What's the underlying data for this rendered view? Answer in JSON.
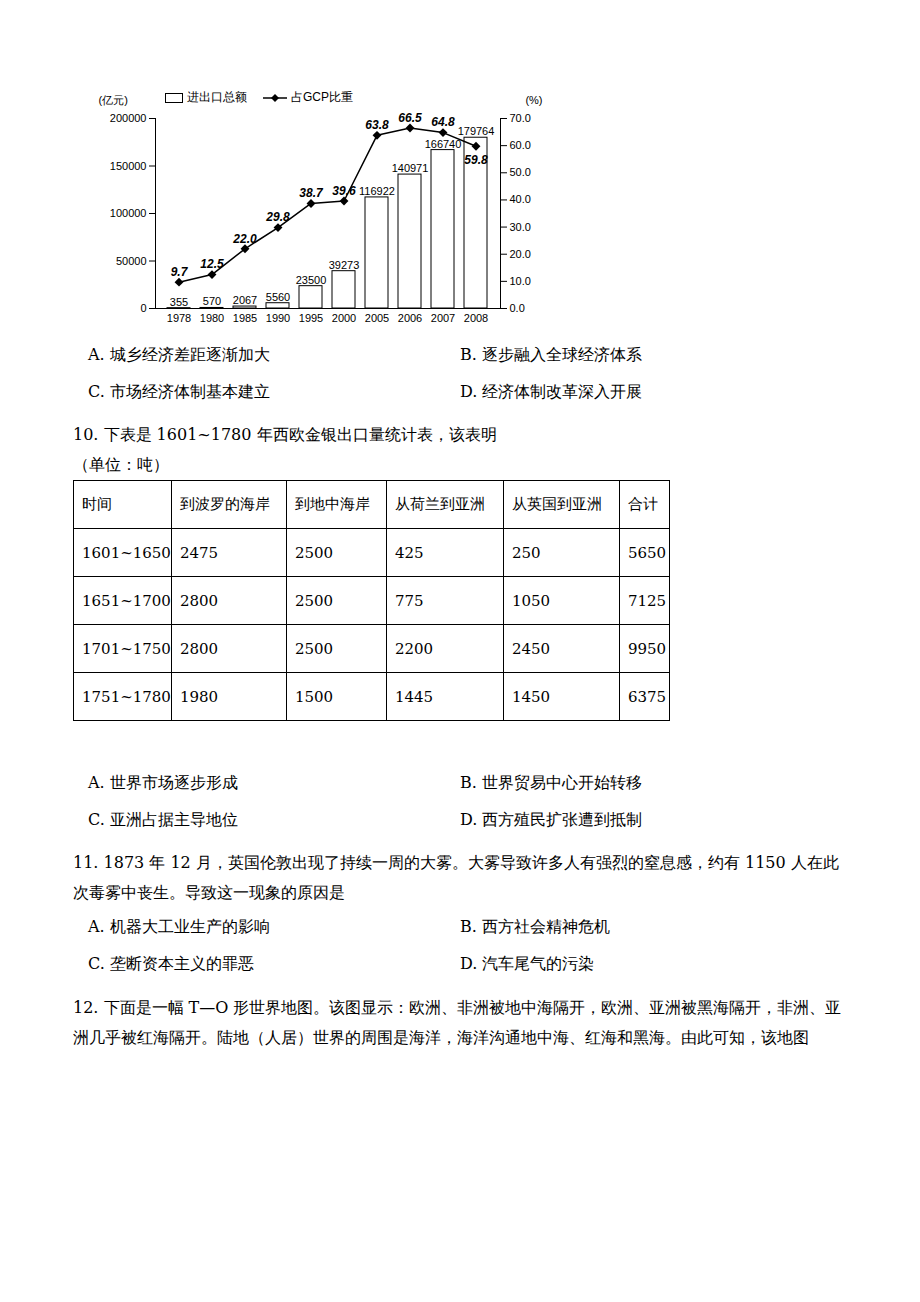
{
  "chart_data": {
    "type": "bar",
    "categories": [
      "1978",
      "1980",
      "1985",
      "1990",
      "1995",
      "2000",
      "2005",
      "2006",
      "2007",
      "2008"
    ],
    "ylabel": "(亿元)",
    "y2label": "(%)",
    "ylim": [
      0,
      200000
    ],
    "yticks": [
      0,
      50000,
      100000,
      150000,
      200000
    ],
    "y2lim": [
      0,
      70
    ],
    "y2ticks": [
      {
        "value": 0,
        "label": "0.0"
      },
      {
        "value": 10,
        "label": "10.0"
      },
      {
        "value": 20,
        "label": "20.0"
      },
      {
        "value": 30,
        "label": "30.0"
      },
      {
        "value": 40,
        "label": "40.0"
      },
      {
        "value": 50,
        "label": "50.0"
      },
      {
        "value": 60,
        "label": "60.0"
      },
      {
        "value": 70,
        "label": "70.0"
      }
    ],
    "legend": "top",
    "data_labels": true,
    "grid": false,
    "series": [
      {
        "name": "进出口总额",
        "type": "bar",
        "color": "#ffffff",
        "values": [
          355,
          570,
          2067,
          5560,
          23500,
          39273,
          116922,
          140971,
          166740,
          179764
        ]
      },
      {
        "name": "占GCP比重",
        "type": "line",
        "axis": "y2",
        "color": "#000000",
        "marker": "diamond",
        "line_style": "solid",
        "values": [
          9.7,
          12.5,
          22.0,
          29.8,
          38.7,
          39.6,
          63.8,
          66.5,
          64.8,
          59.8
        ],
        "value_labels": [
          "9.7",
          "12.5",
          "22.0",
          "29.8",
          "38.7",
          "39.6",
          "63.8",
          "66.5",
          "64.8",
          "59.8"
        ]
      }
    ]
  },
  "document": {
    "q9_options": [
      "A. 城乡经济差距逐渐加大",
      "B. 逐步融入全球经济体系",
      "C. 市场经济体制基本建立",
      "D. 经济体制改革深入开展"
    ],
    "q10": {
      "stem": "10. 下表是 1601~1780 年西欧金银出口量统计表，该表明",
      "unit": "（单位：吨）",
      "table": {
        "header": [
          "时间",
          "到波罗的海岸",
          "到地中海岸",
          "从荷兰到亚洲",
          "从英国到亚洲",
          "合计"
        ],
        "rows": [
          [
            "1601~1650",
            "2475",
            "2500",
            "425",
            "250",
            "5650"
          ],
          [
            "1651~1700",
            "2800",
            "2500",
            "775",
            "1050",
            "7125"
          ],
          [
            "1701~1750",
            "2800",
            "2500",
            "2200",
            "2450",
            "9950"
          ],
          [
            "1751~1780",
            "1980",
            "1500",
            "1445",
            "1450",
            "6375"
          ]
        ]
      },
      "options": [
        "A. 世界市场逐步形成",
        "B. 世界贸易中心开始转移",
        "C. 亚洲占据主导地位",
        "D. 西方殖民扩张遭到抵制"
      ]
    },
    "q11": {
      "stem": "11. 1873 年 12 月，英国伦敦出现了持续一周的大雾。大雾导致许多人有强烈的窒息感，约有 1150 人在此次毒雾中丧生。导致这一现象的原因是",
      "options": [
        "A. 机器大工业生产的影响",
        "B. 西方社会精神危机",
        "C. 垄断资本主义的罪恶",
        "D. 汽车尾气的污染"
      ]
    },
    "q12": {
      "stem": "12. 下面是一幅 T—O 形世界地图。该图显示：欧洲、非洲被地中海隔开，欧洲、亚洲被黑海隔开，非洲、亚洲几乎被红海隔开。陆地（人居）世界的周围是海洋，海洋沟通地中海、红海和黑海。由此可知，该地图"
    }
  }
}
